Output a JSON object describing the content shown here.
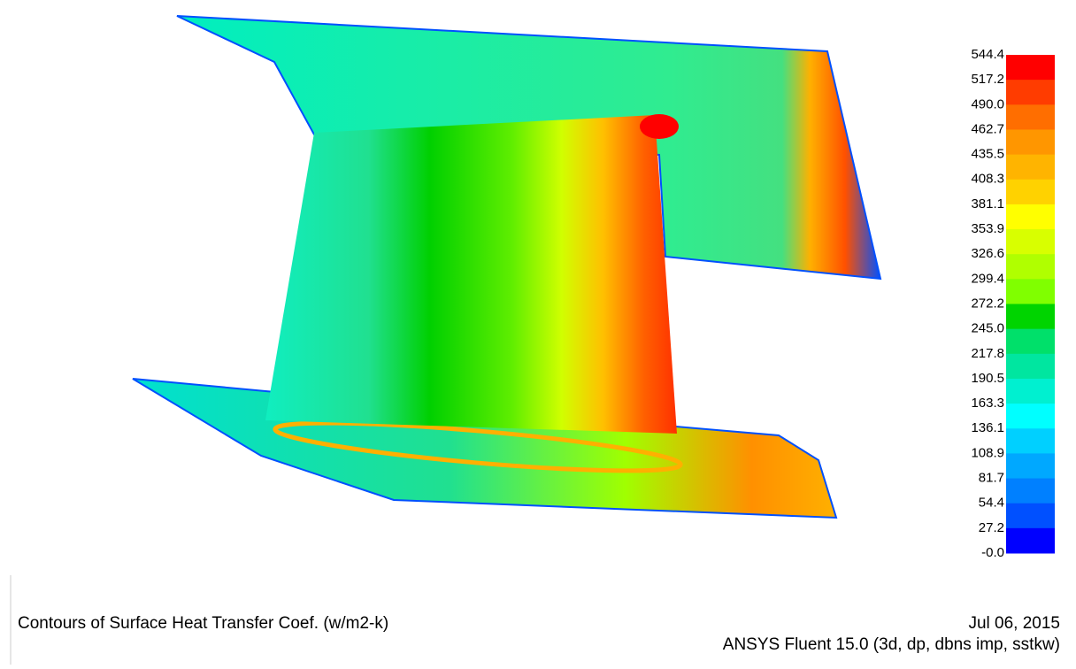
{
  "colorbar": {
    "labels": [
      "544.4",
      "517.2",
      "490.0",
      "462.7",
      "435.5",
      "408.3",
      "381.1",
      "353.9",
      "326.6",
      "299.4",
      "272.2",
      "245.0",
      "217.8",
      "190.5",
      "163.3",
      "136.1",
      "108.9",
      "81.7",
      "54.4",
      "27.2",
      "-0.0"
    ],
    "colors": [
      "#ff0000",
      "#ff3c00",
      "#ff6e00",
      "#ff9600",
      "#ffb400",
      "#ffd200",
      "#ffff00",
      "#d8ff00",
      "#b0ff00",
      "#80ff00",
      "#00d400",
      "#00e06a",
      "#00e6a0",
      "#00f0d0",
      "#00ffff",
      "#00d0ff",
      "#00a8ff",
      "#0080ff",
      "#0050ff",
      "#0000ff"
    ]
  },
  "caption": {
    "title": "Contours of Surface Heat Transfer Coef. (w/m2-k)",
    "date": "Jul 06, 2015",
    "software": "ANSYS Fluent 15.0 (3d, dp, dbns imp, sstkw)"
  }
}
